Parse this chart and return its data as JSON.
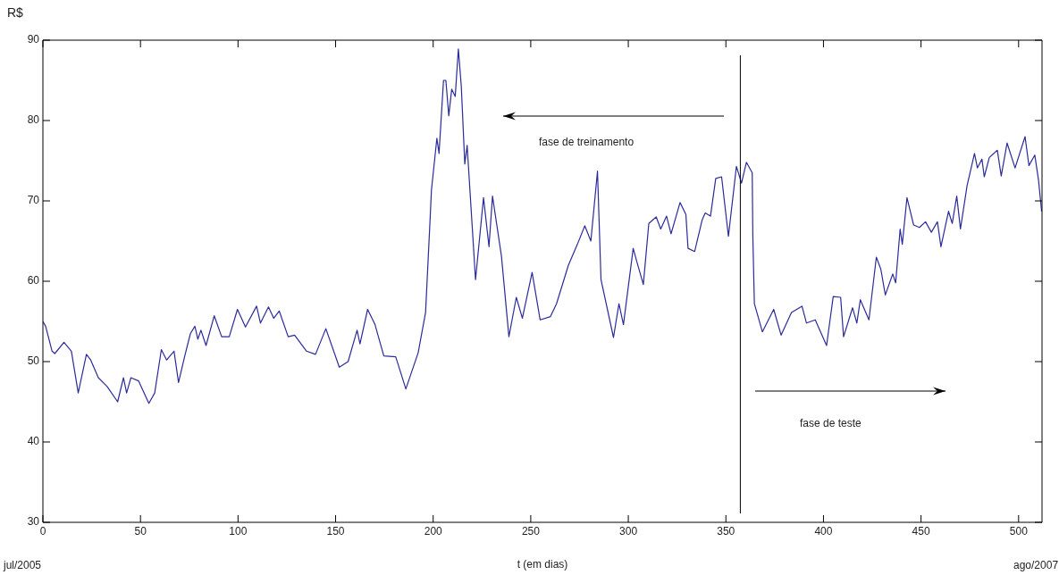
{
  "chart_data": {
    "type": "line",
    "xlabel": "t (em dias)",
    "ylabel": "R$",
    "annotations": [
      "fase de treinamento",
      "fase de teste",
      "jul/2005",
      "ago/2007"
    ],
    "x": [
      0,
      1.4,
      4.7,
      6.1,
      10.8,
      14.6,
      18.1,
      22.3,
      24.5,
      28.4,
      32.9,
      38.3,
      41.3,
      42.9,
      45.1,
      49,
      54.3,
      57.3,
      60.7,
      63.4,
      67.2,
      69.5,
      72.6,
      75.6,
      77.9,
      79.4,
      81,
      83.6,
      87.8,
      91.6,
      95.5,
      99.7,
      103.8,
      109.5,
      111.5,
      115.6,
      118.3,
      121.1,
      125.7,
      129,
      135.1,
      139.7,
      145,
      151.9,
      156.4,
      161,
      162.5,
      166.4,
      170.2,
      174.7,
      180.8,
      186,
      192.3,
      196.1,
      198.4,
      199.1,
      201.9,
      203,
      205.3,
      206.5,
      208,
      209.5,
      211.3,
      212.9,
      214.4,
      216.2,
      217.4,
      221.7,
      225.8,
      228.6,
      230.4,
      235,
      238.8,
      242.6,
      245.7,
      250.7,
      254.8,
      260.1,
      263.2,
      269.3,
      273.9,
      277.7,
      280.8,
      284.2,
      286,
      292.4,
      295.2,
      297.5,
      302.5,
      304.4,
      307.7,
      310.5,
      314.3,
      316.6,
      319.6,
      321.9,
      326.5,
      329.5,
      330.6,
      334,
      337.8,
      339.4,
      342.1,
      344.8,
      347.8,
      351.3,
      355.4,
      358,
      360.5,
      363.5,
      363.8,
      364.6,
      368.7,
      374.5,
      378.3,
      383.6,
      389,
      391.3,
      395.8,
      401.6,
      405,
      408.8,
      410.3,
      414.9,
      417.1,
      418.9,
      423.3,
      427.1,
      429.4,
      431.7,
      435.5,
      437,
      439.3,
      440.4,
      442.8,
      446.2,
      449.2,
      452.3,
      455.3,
      458.4,
      460.2,
      464.1,
      466,
      468.3,
      470.2,
      473.6,
      477.4,
      478.9,
      481.2,
      482.4,
      485,
      489.1,
      491.1,
      494.1,
      498.2,
      503.3,
      505.3,
      508.3,
      510.2,
      511.8
    ],
    "series": [
      {
        "color": "#2b2b9b",
        "values": [
          55,
          54.4,
          51.3,
          51,
          52.4,
          51.3,
          46.1,
          50.9,
          50.2,
          48,
          46.9,
          45,
          48,
          46.1,
          48,
          47.6,
          44.8,
          46.1,
          51.5,
          50.2,
          51.3,
          47.4,
          50.6,
          53.5,
          54.4,
          52.8,
          53.9,
          52,
          55.7,
          53.1,
          53.1,
          56.5,
          54.3,
          56.9,
          54.8,
          56.8,
          55.4,
          56.3,
          53.1,
          53.3,
          51.3,
          50.9,
          54.1,
          49.3,
          50,
          53.9,
          52.2,
          56.5,
          54.6,
          50.7,
          50.6,
          46.6,
          51.1,
          56.1,
          67.6,
          71.3,
          77.8,
          75.9,
          85,
          85,
          80.6,
          83.9,
          83,
          88.9,
          84.3,
          74.6,
          76.9,
          60.2,
          70.4,
          64.3,
          70.6,
          63.1,
          53.1,
          58,
          55.4,
          61.1,
          55.2,
          55.6,
          57.2,
          62,
          64.6,
          66.9,
          65,
          73.7,
          60.2,
          53,
          57.2,
          54.6,
          64.1,
          62.4,
          59.6,
          67.2,
          68,
          66.5,
          68.1,
          65.9,
          69.8,
          68.3,
          64.1,
          63.7,
          67.6,
          68.5,
          68.1,
          72.8,
          73,
          65.6,
          74.3,
          72.2,
          74.8,
          73.5,
          65.7,
          57.2,
          53.7,
          56.5,
          53.3,
          56.1,
          56.9,
          54.8,
          55.2,
          52,
          58.1,
          58,
          53.1,
          56.7,
          54.8,
          57.7,
          55.2,
          63,
          61.5,
          58.3,
          60.9,
          59.8,
          66.5,
          64.6,
          70.4,
          67,
          66.7,
          67.4,
          66.1,
          67.4,
          64.3,
          68.7,
          67.2,
          70.6,
          66.5,
          71.9,
          75.9,
          74.1,
          75.2,
          73,
          75.4,
          76.3,
          73.1,
          77.2,
          74.1,
          78,
          74.4,
          75.7,
          72.6,
          68.7
        ]
      }
    ],
    "xlim": [
      0,
      512
    ],
    "xticks": [
      0,
      50,
      100,
      150,
      200,
      250,
      300,
      350,
      400,
      450,
      500
    ],
    "ylim": [
      30,
      90
    ],
    "yticks": [
      30,
      40,
      50,
      60,
      70,
      80,
      90
    ],
    "ref_lines": [
      {
        "axis": "x",
        "value": 357.4,
        "color": "#000000"
      }
    ],
    "grid": false,
    "legend": false,
    "marker": "none",
    "line_style": "solid"
  }
}
